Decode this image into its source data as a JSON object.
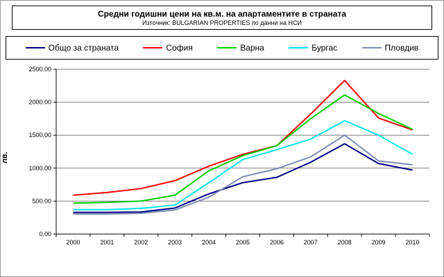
{
  "title": "Средни годишни цени на кв.м. на апартаментите в страната",
  "subtitle": "Източник: BULGARIAN PROPERTIES по данни на НСИ",
  "chart_data": {
    "type": "line",
    "title": "Средни годишни цени на кв.м. на апартаментите в страната",
    "subtitle": "Източник: BULGARIAN PROPERTIES по данни на НСИ",
    "xlabel": "",
    "ylabel": "лв.",
    "ylim": [
      0,
      2500
    ],
    "grid": true,
    "legend_position": "top",
    "y_ticks": [
      "0.00",
      "500.00",
      "1000.00",
      "1500.00",
      "2000.00",
      "2500.00"
    ],
    "categories": [
      "2000",
      "2001",
      "2002",
      "2003",
      "2004",
      "2005",
      "2006",
      "2007",
      "2008",
      "2009",
      "2010"
    ],
    "series": [
      {
        "name": "Общо за страната",
        "color": "#000080",
        "values": [
          330,
          330,
          335,
          395,
          610,
          780,
          860,
          1090,
          1370,
          1070,
          970
        ]
      },
      {
        "name": "София",
        "color": "#ff0000",
        "values": [
          590,
          630,
          690,
          810,
          1030,
          1210,
          1340,
          1820,
          2330,
          1760,
          1580
        ]
      },
      {
        "name": "Варна",
        "color": "#00cc00",
        "values": [
          470,
          480,
          500,
          590,
          960,
          1190,
          1340,
          1750,
          2110,
          1830,
          1590
        ]
      },
      {
        "name": "Бургас",
        "color": "#00e5e5",
        "values": [
          370,
          370,
          390,
          440,
          780,
          1130,
          1280,
          1440,
          1720,
          1500,
          1210
        ]
      },
      {
        "name": "Пловдив",
        "color": "#7c8cb4",
        "values": [
          305,
          305,
          315,
          365,
          560,
          870,
          990,
          1170,
          1500,
          1110,
          1050
        ]
      }
    ]
  }
}
